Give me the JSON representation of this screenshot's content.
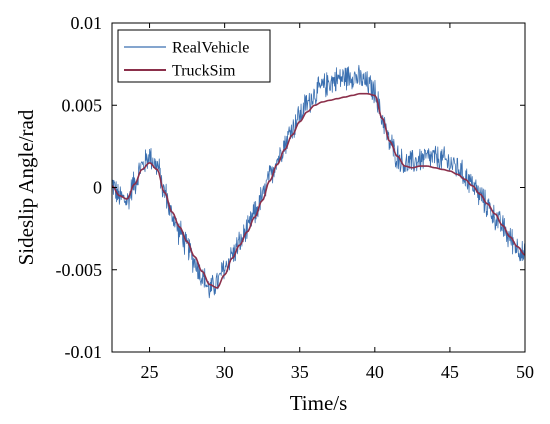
{
  "chart_data": {
    "type": "line",
    "xlabel": "Time/s",
    "ylabel": "Sideslip Angle/rad",
    "xlim": [
      22.5,
      50
    ],
    "ylim": [
      -0.01,
      0.01
    ],
    "xticks": [
      25,
      30,
      35,
      40,
      45,
      50
    ],
    "xtick_labels": [
      "25",
      "30",
      "35",
      "40",
      "45",
      "50"
    ],
    "yticks": [
      -0.01,
      -0.005,
      0,
      0.005,
      0.01
    ],
    "ytick_labels": [
      "-0.01",
      "-0.005",
      "0",
      "0.005",
      "0.01"
    ],
    "legend": {
      "position": "top-left"
    },
    "series": [
      {
        "name": "RealVehicle",
        "color": "#3a6fb0",
        "noise_amplitude": 0.0009,
        "x": [
          22.5,
          23.0,
          23.5,
          24.0,
          24.5,
          25.0,
          25.5,
          26.0,
          26.5,
          27.0,
          27.5,
          28.0,
          28.5,
          29.0,
          29.5,
          30.0,
          30.5,
          31.0,
          31.5,
          32.0,
          32.5,
          33.0,
          33.5,
          34.0,
          34.5,
          35.0,
          35.5,
          36.0,
          36.5,
          37.0,
          37.5,
          38.0,
          38.5,
          39.0,
          39.5,
          40.0,
          40.5,
          41.0,
          41.5,
          42.0,
          42.5,
          43.0,
          43.5,
          44.0,
          44.5,
          45.0,
          45.5,
          46.0,
          46.5,
          47.0,
          47.5,
          48.0,
          48.5,
          49.0,
          49.5,
          50.0
        ],
        "values": [
          0.0002,
          -0.0006,
          -0.0008,
          0.0003,
          0.0013,
          0.0019,
          0.0013,
          -0.0003,
          -0.0017,
          -0.0027,
          -0.0036,
          -0.0045,
          -0.0054,
          -0.0062,
          -0.0058,
          -0.0049,
          -0.0041,
          -0.0034,
          -0.0026,
          -0.0016,
          -0.0006,
          0.0006,
          0.0017,
          0.0027,
          0.0036,
          0.0044,
          0.0051,
          0.0057,
          0.0061,
          0.0064,
          0.0066,
          0.0067,
          0.0068,
          0.0066,
          0.0063,
          0.0058,
          0.0042,
          0.0027,
          0.0019,
          0.0014,
          0.0015,
          0.0017,
          0.0018,
          0.0018,
          0.0017,
          0.0015,
          0.0012,
          0.0007,
          0.0002,
          -0.0005,
          -0.0011,
          -0.0018,
          -0.0024,
          -0.0031,
          -0.0036,
          -0.0042
        ]
      },
      {
        "name": "TruckSim",
        "color": "#8b2f4a",
        "x": [
          22.5,
          23.0,
          23.5,
          24.0,
          24.5,
          25.0,
          25.5,
          26.0,
          26.5,
          27.0,
          27.5,
          28.0,
          28.5,
          29.0,
          29.5,
          30.0,
          30.5,
          31.0,
          31.5,
          32.0,
          32.5,
          33.0,
          33.5,
          34.0,
          34.5,
          35.0,
          35.5,
          36.0,
          36.5,
          37.0,
          37.5,
          38.0,
          38.5,
          39.0,
          39.5,
          40.0,
          40.5,
          41.0,
          41.5,
          42.0,
          42.5,
          43.0,
          43.5,
          44.0,
          44.5,
          45.0,
          45.5,
          46.0,
          46.5,
          47.0,
          47.5,
          48.0,
          48.5,
          49.0,
          49.5,
          50.0
        ],
        "values": [
          0.0001,
          -0.0005,
          -0.0007,
          0.0002,
          0.0011,
          0.0015,
          0.0011,
          -0.0003,
          -0.0015,
          -0.0024,
          -0.0033,
          -0.0042,
          -0.0051,
          -0.0059,
          -0.0061,
          -0.0053,
          -0.0043,
          -0.0035,
          -0.0027,
          -0.0018,
          -0.0008,
          0.0004,
          0.0014,
          0.0023,
          0.0032,
          0.004,
          0.0046,
          0.005,
          0.0052,
          0.0053,
          0.0054,
          0.0055,
          0.0056,
          0.0057,
          0.0057,
          0.0056,
          0.0042,
          0.0028,
          0.0019,
          0.0013,
          0.0012,
          0.0013,
          0.0013,
          0.0012,
          0.0011,
          0.001,
          0.0008,
          0.0005,
          0.0001,
          -0.0004,
          -0.001,
          -0.0016,
          -0.0023,
          -0.003,
          -0.0036,
          -0.0041
        ]
      }
    ]
  }
}
